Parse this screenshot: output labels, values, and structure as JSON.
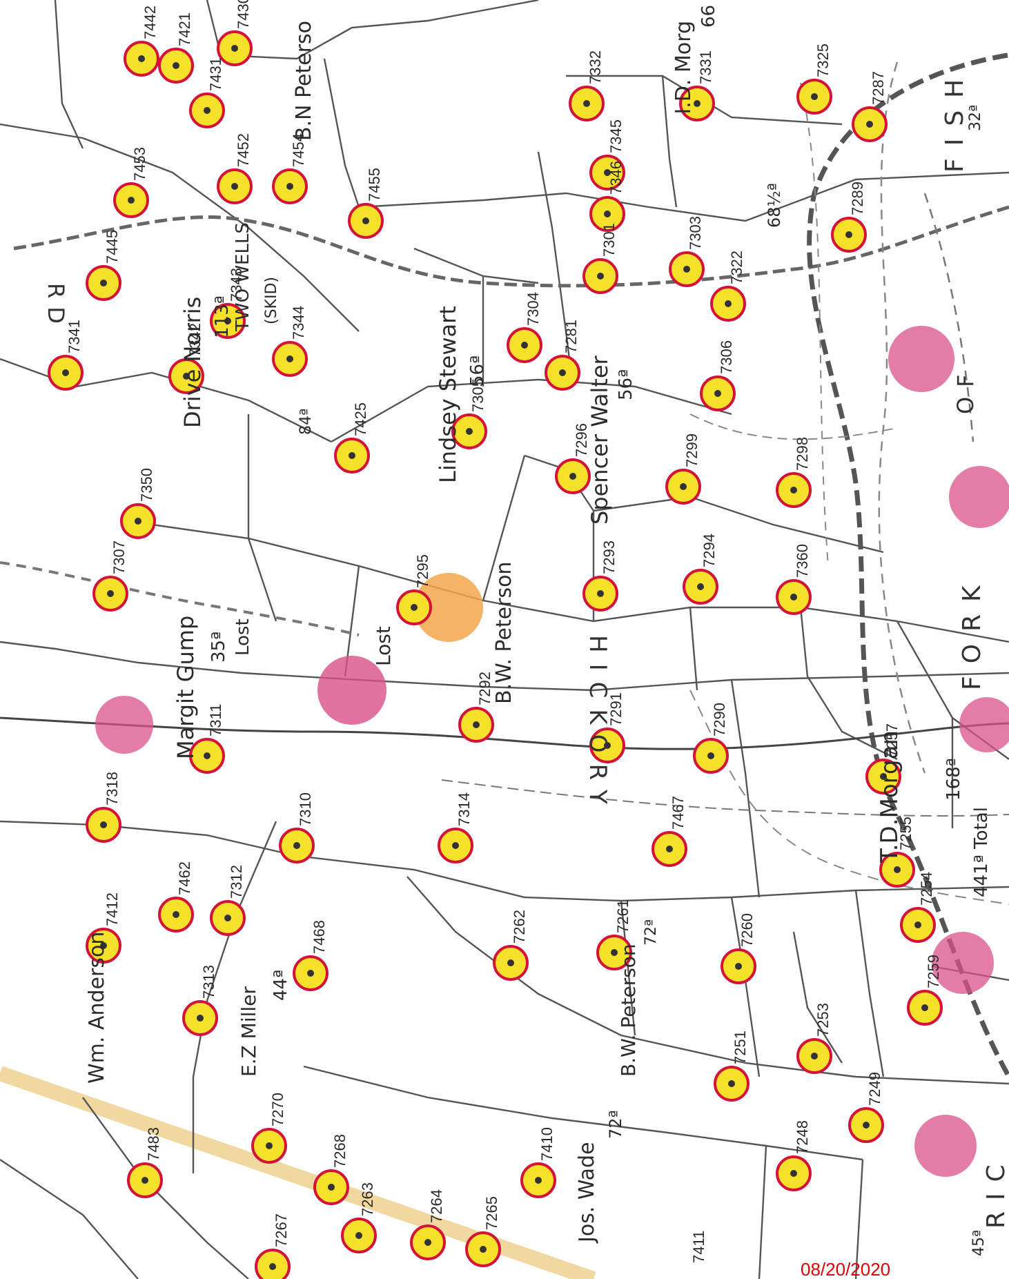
{
  "map": {
    "owners": {
      "bn_peterson_top": "B.N Peterso",
      "id_morgan_top": "I.D. Morg",
      "id_morgan_acres": "66",
      "drive_norris": "Drive Norris",
      "drive_norris_acres": "113ª",
      "two_wells": "TWO WELLS",
      "two_wells_skid": "(SKID)",
      "lindsey_stewart": "Lindsey Stewart",
      "lindsey_stewart_acres": "56ª",
      "spencer_walter": "Spencer Walter",
      "spencer_walter_acres": "56ª",
      "margit_gump": "Margit Gump",
      "margit_gump_acres": "35ª",
      "lost_1": "Lost",
      "lost_2": "Lost",
      "bw_peterson_mid": "B.W. Peterson",
      "wm_anderson": "Wm. Anderson",
      "ez_miller": "E.Z Miller",
      "ez_miller_acres": "44ª",
      "bw_peterson_low": "B.W. Peterson",
      "bw_peterson_low_acres": "72ª",
      "jos_wade": "Jos. Wade",
      "jos_wade_acres": "72ª",
      "td_morgan": "T.D.Morgan",
      "td_morgan_acres": "168ª",
      "total": "441ª Total",
      "acres_84": "84ª",
      "acres_68": "68½ª",
      "acres_32": "32ª",
      "acres_45": "45ª"
    },
    "roads": {
      "fish_road": "FISH",
      "hickory_road": "HICKORY",
      "fork_road": "FORK",
      "of_road": "OF",
      "ric_road": "RIC",
      "rd_top": "RD"
    },
    "well_numbers": [
      "7442",
      "7421",
      "7430",
      "7431",
      "7453",
      "7452",
      "7454",
      "7455",
      "7332",
      "7345",
      "7331",
      "7325",
      "7287",
      "7289",
      "7346",
      "7303",
      "7301",
      "7304",
      "7322",
      "7341",
      "7445",
      "7342",
      "7343",
      "7344",
      "7305",
      "7281",
      "7306",
      "7425",
      "7296",
      "7299",
      "7298",
      "7350",
      "7307",
      "7295",
      "7293",
      "7294",
      "7360",
      "7292",
      "7291",
      "7290",
      "7311",
      "7318",
      "7310",
      "7314",
      "7467",
      "7257",
      "7255",
      "7254",
      "7312",
      "7462",
      "7412",
      "7313",
      "7468",
      "7262",
      "7261",
      "7260",
      "7259",
      "7253",
      "7251",
      "7411",
      "7483",
      "7270",
      "7268",
      "7410",
      "7265",
      "7264",
      "7263",
      "7267",
      "7248",
      "7249"
    ],
    "stamp_date": "08/20/2020"
  }
}
